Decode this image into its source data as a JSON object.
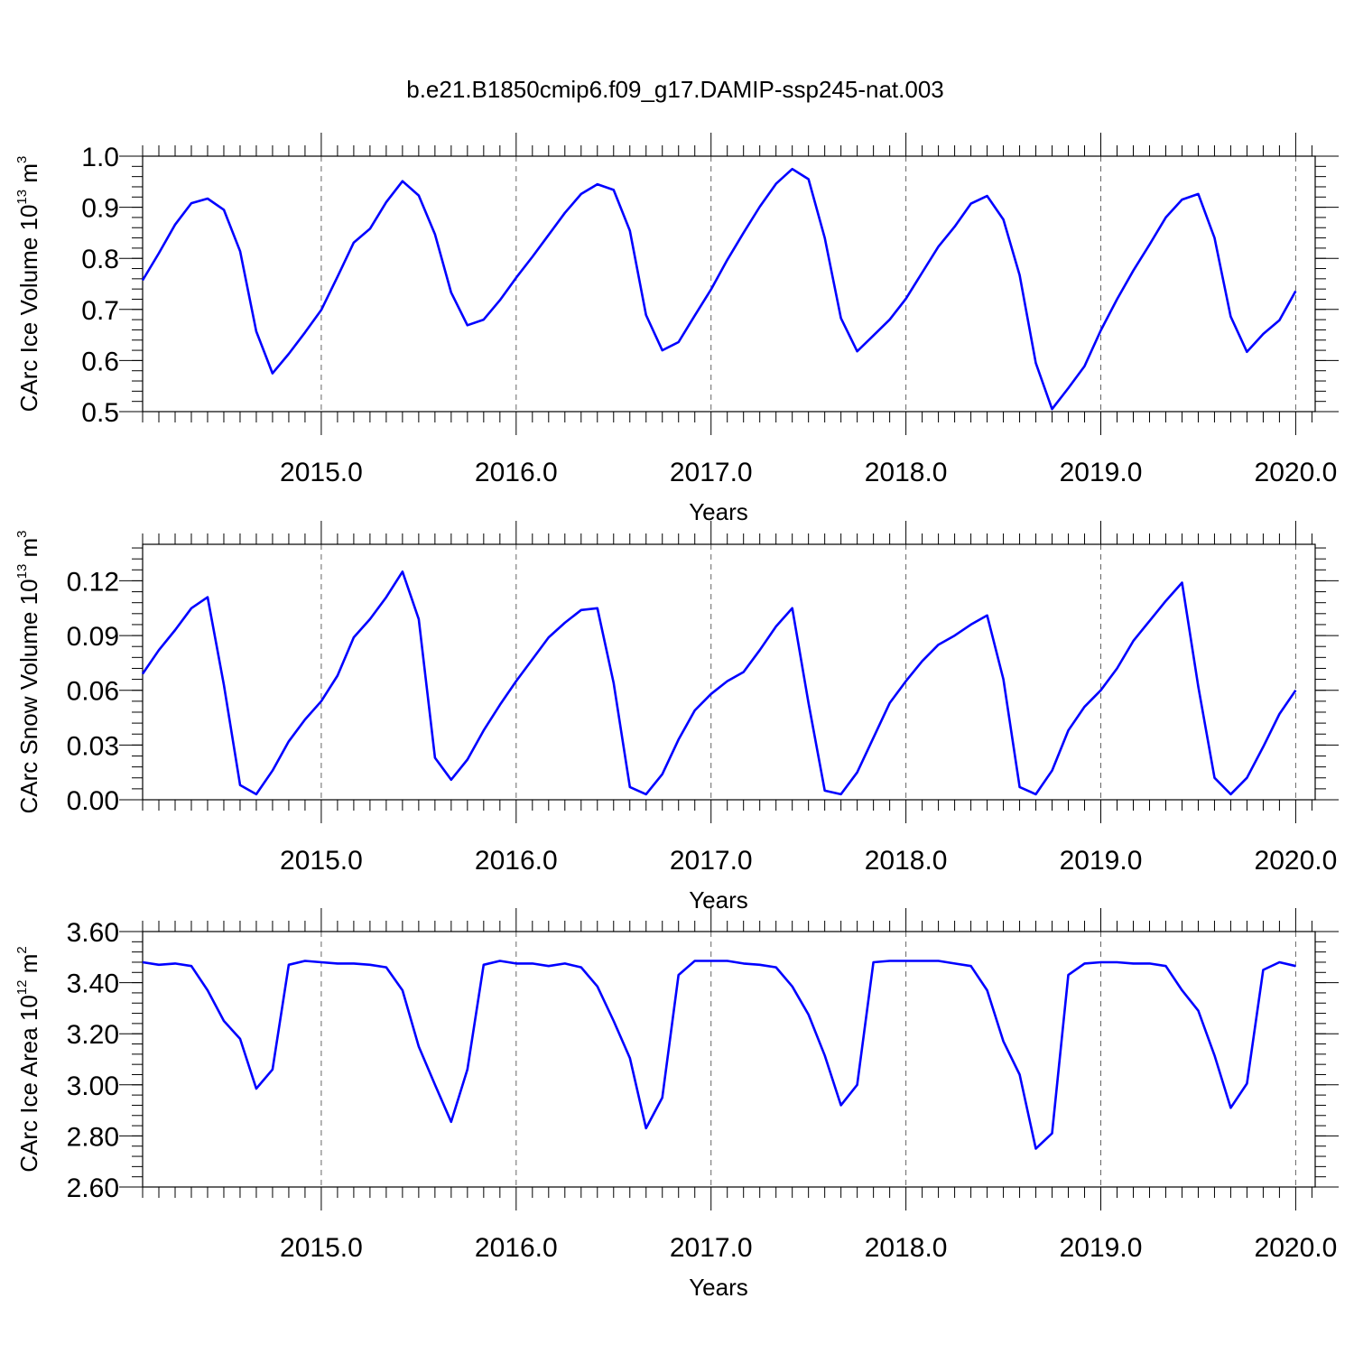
{
  "figure": {
    "title": "b.e21.B1850cmip6.f09_g17.DAMIP-ssp245-nat.003",
    "line_color": "#0000ff",
    "grid_color": "#666666"
  },
  "chart_data": [
    {
      "type": "line",
      "title": "",
      "xlabel": "Years",
      "ylabel_main": "CArc Ice Volume 10",
      "ylabel_exp": "13",
      "ylabel_tail": " m",
      "ylabel_unit_exp": "3",
      "xlim": [
        2014.0833,
        2020.1
      ],
      "ylim": [
        0.5,
        1.0
      ],
      "xticks": [
        "2015.0",
        "2016.0",
        "2017.0",
        "2018.0",
        "2019.0",
        "2020.0"
      ],
      "xtick_values": [
        2015,
        2016,
        2017,
        2018,
        2019,
        2020
      ],
      "yticks": [
        "0.5",
        "0.6",
        "0.7",
        "0.8",
        "0.9",
        "1.0"
      ],
      "ytick_values": [
        0.5,
        0.6,
        0.7,
        0.8,
        0.9,
        1.0
      ],
      "ymin_step": 0.02,
      "grid": "vertical dashed at years",
      "series": [
        {
          "values": [
            0.757,
            0.81,
            0.866,
            0.908,
            0.917,
            0.895,
            0.814,
            0.657,
            0.575,
            0.613,
            0.655,
            0.699,
            0.764,
            0.831,
            0.858,
            0.91,
            0.951,
            0.923,
            0.847,
            0.733,
            0.669,
            0.68,
            0.718,
            0.762,
            0.803,
            0.846,
            0.889,
            0.926,
            0.945,
            0.934,
            0.854,
            0.689,
            0.62,
            0.636,
            0.688,
            0.739,
            0.797,
            0.85,
            0.901,
            0.946,
            0.975,
            0.955,
            0.84,
            0.683,
            0.618,
            0.649,
            0.68,
            0.721,
            0.772,
            0.823,
            0.862,
            0.907,
            0.922,
            0.876,
            0.767,
            0.595,
            0.505,
            0.546,
            0.589,
            0.659,
            0.72,
            0.776,
            0.827,
            0.88,
            0.915,
            0.926,
            0.84,
            0.686,
            0.617,
            0.652,
            0.679,
            0.736
          ]
        }
      ]
    },
    {
      "type": "line",
      "title": "",
      "xlabel": "Years",
      "ylabel_main": "CArc Snow Volume 10",
      "ylabel_exp": "13",
      "ylabel_tail": " m",
      "ylabel_unit_exp": "3",
      "xlim": [
        2014.0833,
        2020.1
      ],
      "ylim": [
        0.0,
        0.14
      ],
      "xticks": [
        "2015.0",
        "2016.0",
        "2017.0",
        "2018.0",
        "2019.0",
        "2020.0"
      ],
      "xtick_values": [
        2015,
        2016,
        2017,
        2018,
        2019,
        2020
      ],
      "yticks": [
        "0.00",
        "0.03",
        "0.06",
        "0.09",
        "0.12"
      ],
      "ytick_values": [
        0.0,
        0.03,
        0.06,
        0.09,
        0.12
      ],
      "ymin_step": 0.006,
      "grid": "vertical dashed at years",
      "series": [
        {
          "values": [
            0.069,
            0.082,
            0.093,
            0.105,
            0.111,
            0.063,
            0.008,
            0.003,
            0.016,
            0.032,
            0.044,
            0.054,
            0.068,
            0.089,
            0.099,
            0.111,
            0.125,
            0.099,
            0.023,
            0.011,
            0.022,
            0.038,
            0.052,
            0.065,
            0.077,
            0.089,
            0.097,
            0.104,
            0.105,
            0.064,
            0.007,
            0.003,
            0.014,
            0.033,
            0.049,
            0.058,
            0.065,
            0.07,
            0.082,
            0.095,
            0.105,
            0.053,
            0.005,
            0.003,
            0.015,
            0.034,
            0.053,
            0.065,
            0.076,
            0.085,
            0.09,
            0.096,
            0.101,
            0.066,
            0.007,
            0.003,
            0.016,
            0.038,
            0.051,
            0.06,
            0.072,
            0.087,
            0.098,
            0.109,
            0.119,
            0.062,
            0.012,
            0.003,
            0.012,
            0.029,
            0.047,
            0.06
          ]
        }
      ]
    },
    {
      "type": "line",
      "title": "",
      "xlabel": "Years",
      "ylabel_main": "CArc Ice Area 10",
      "ylabel_exp": "12",
      "ylabel_tail": " m",
      "ylabel_unit_exp": "2",
      "xlim": [
        2014.0833,
        2020.1
      ],
      "ylim": [
        2.6,
        3.6
      ],
      "xticks": [
        "2015.0",
        "2016.0",
        "2017.0",
        "2018.0",
        "2019.0",
        "2020.0"
      ],
      "xtick_values": [
        2015,
        2016,
        2017,
        2018,
        2019,
        2020
      ],
      "yticks": [
        "2.60",
        "2.80",
        "3.00",
        "3.20",
        "3.40",
        "3.60"
      ],
      "ytick_values": [
        2.6,
        2.8,
        3.0,
        3.2,
        3.4,
        3.6
      ],
      "ymin_step": 0.04,
      "grid": "vertical dashed at years",
      "series": [
        {
          "values": [
            3.48,
            3.47,
            3.475,
            3.465,
            3.37,
            3.25,
            3.18,
            2.985,
            3.06,
            3.47,
            3.485,
            3.48,
            3.475,
            3.475,
            3.47,
            3.46,
            3.37,
            3.15,
            3.0,
            2.855,
            3.06,
            3.47,
            3.485,
            3.475,
            3.475,
            3.465,
            3.475,
            3.46,
            3.385,
            3.25,
            3.105,
            2.83,
            2.95,
            3.43,
            3.485,
            3.485,
            3.485,
            3.475,
            3.47,
            3.46,
            3.385,
            3.275,
            3.115,
            2.92,
            3.0,
            3.48,
            3.485,
            3.485,
            3.485,
            3.485,
            3.475,
            3.465,
            3.37,
            3.17,
            3.04,
            2.75,
            2.81,
            3.43,
            3.475,
            3.48,
            3.48,
            3.475,
            3.475,
            3.465,
            3.37,
            3.29,
            3.115,
            2.91,
            3.005,
            3.45,
            3.48,
            3.465
          ]
        }
      ]
    }
  ]
}
